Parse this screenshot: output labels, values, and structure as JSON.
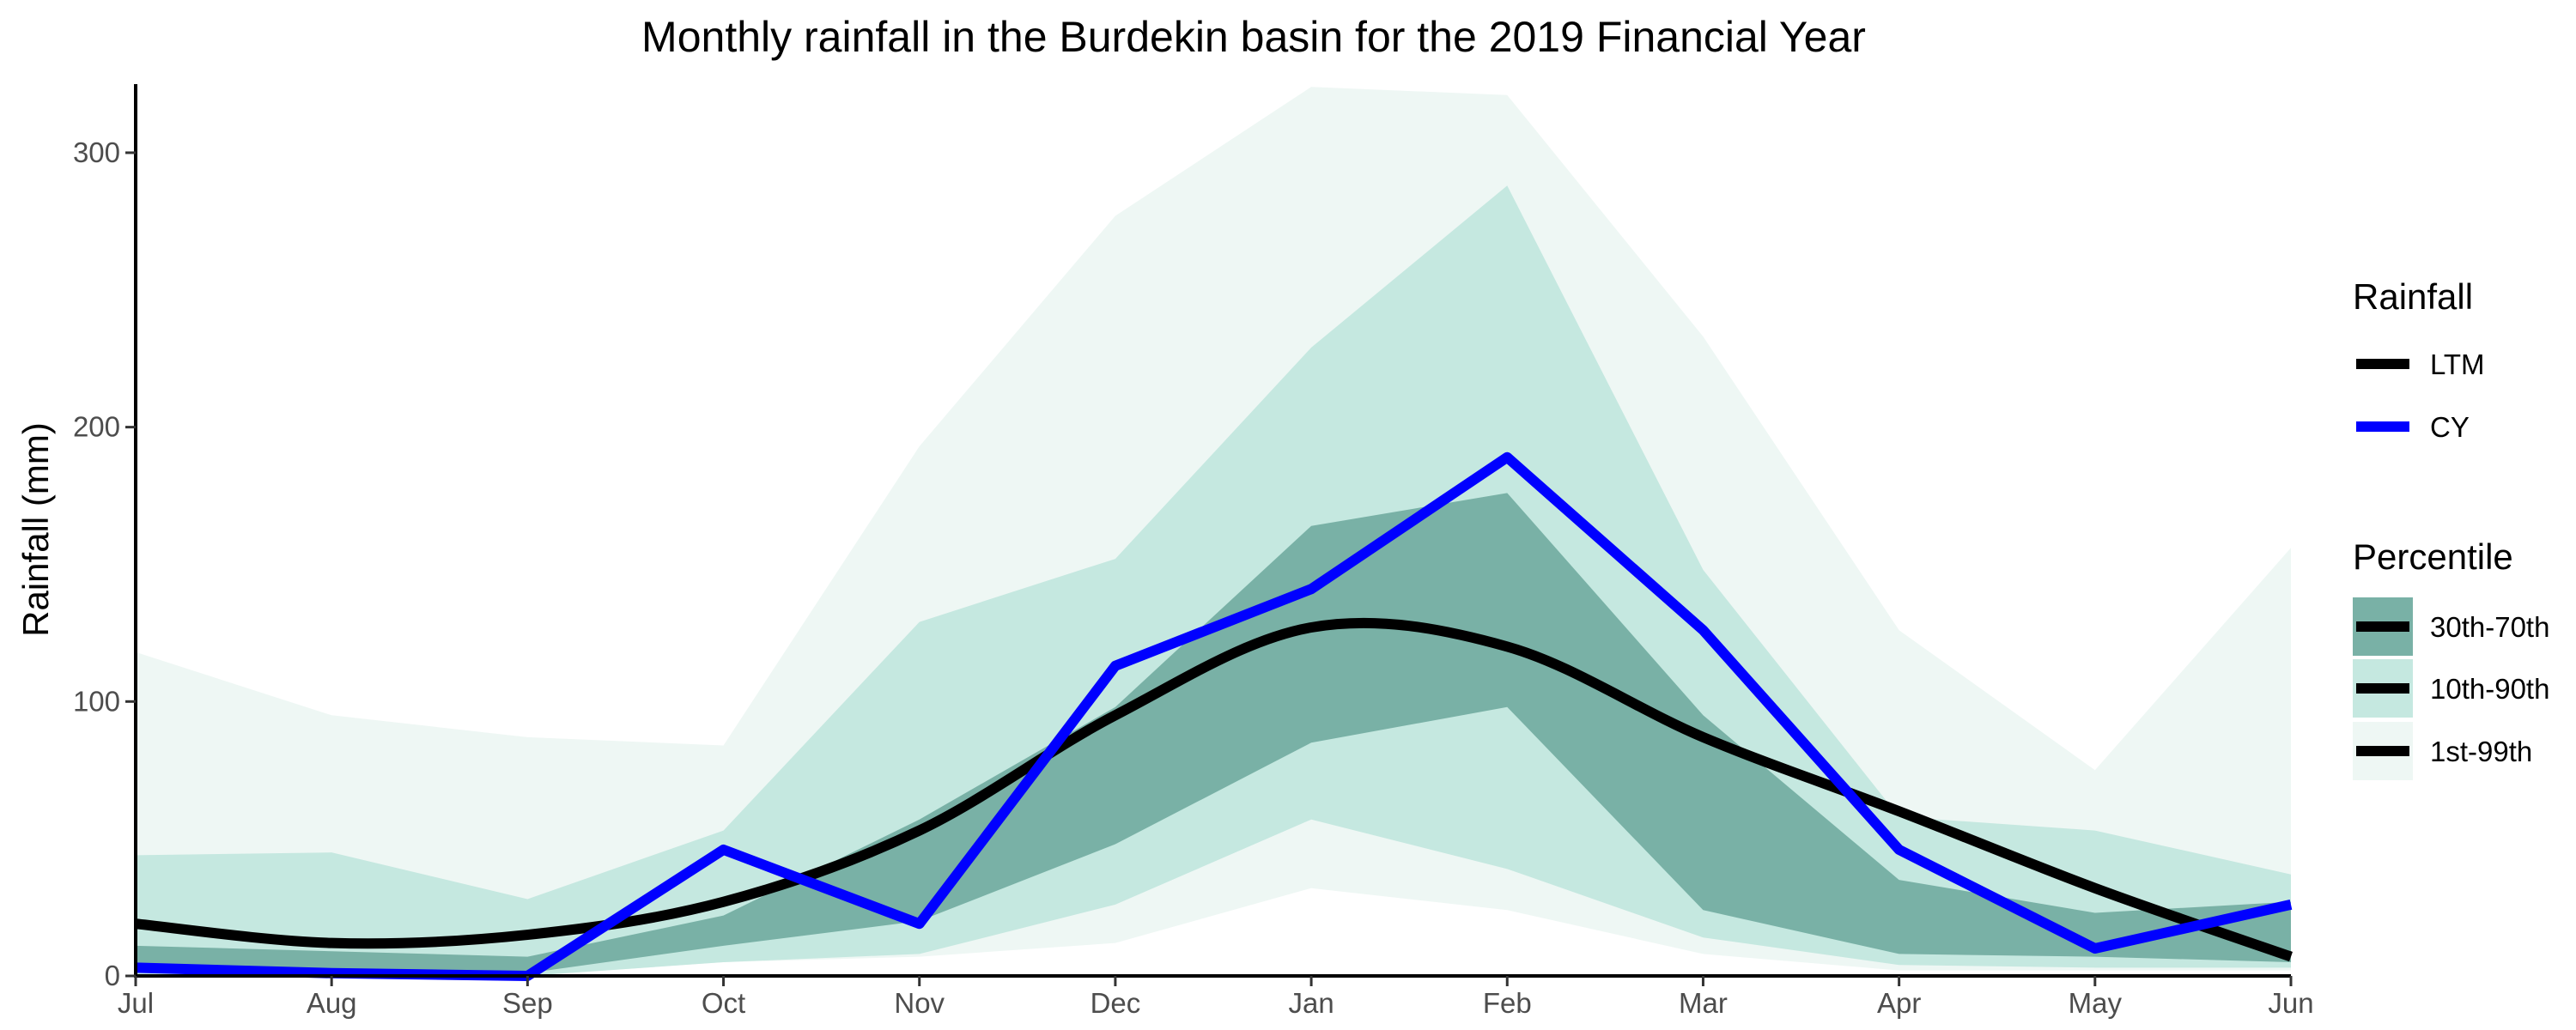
{
  "chart_data": {
    "type": "area",
    "title": "Monthly rainfall in the Burdekin basin for the 2019 Financial Year",
    "xlabel": "",
    "ylabel": "Rainfall (mm)",
    "categories": [
      "Jul",
      "Aug",
      "Sep",
      "Oct",
      "Nov",
      "Dec",
      "Jan",
      "Feb",
      "Mar",
      "Apr",
      "May",
      "Jun"
    ],
    "ylim": [
      0,
      325
    ],
    "yticks": [
      0,
      100,
      200,
      300
    ],
    "grid": false,
    "bands": [
      {
        "name": "1st-99th",
        "color": "#eef7f4",
        "lower": [
          0,
          0,
          0,
          5,
          7,
          12,
          32,
          24,
          8,
          2,
          2,
          2
        ],
        "upper": [
          118,
          95,
          87,
          84,
          193,
          277,
          324,
          321,
          233,
          126,
          75,
          156
        ]
      },
      {
        "name": "10th-90th",
        "color": "#c5e8e0",
        "lower": [
          0,
          0,
          0,
          5,
          8,
          26,
          57,
          39,
          14,
          4,
          3,
          3
        ],
        "upper": [
          44,
          45,
          28,
          53,
          129,
          152,
          229,
          288,
          148,
          58,
          53,
          37
        ]
      },
      {
        "name": "30th-70th",
        "color": "#79b1a6",
        "lower": [
          3,
          1,
          1,
          11,
          20,
          48,
          85,
          98,
          24,
          8,
          7,
          5
        ],
        "upper": [
          11,
          9,
          7,
          22,
          57,
          98,
          164,
          176,
          95,
          35,
          23,
          27
        ]
      }
    ],
    "series": [
      {
        "name": "LTM",
        "color": "#000000",
        "values": [
          19,
          12,
          15,
          27,
          53,
          95,
          127,
          120,
          87,
          60,
          32,
          7
        ]
      },
      {
        "name": "CY",
        "color": "#0000ff",
        "values": [
          3,
          1,
          0,
          46,
          19,
          113,
          141,
          189,
          126,
          46,
          10,
          26
        ]
      }
    ],
    "legend": {
      "placement": "right",
      "rainfall_title": "Rainfall",
      "percentile_title": "Percentile"
    }
  }
}
